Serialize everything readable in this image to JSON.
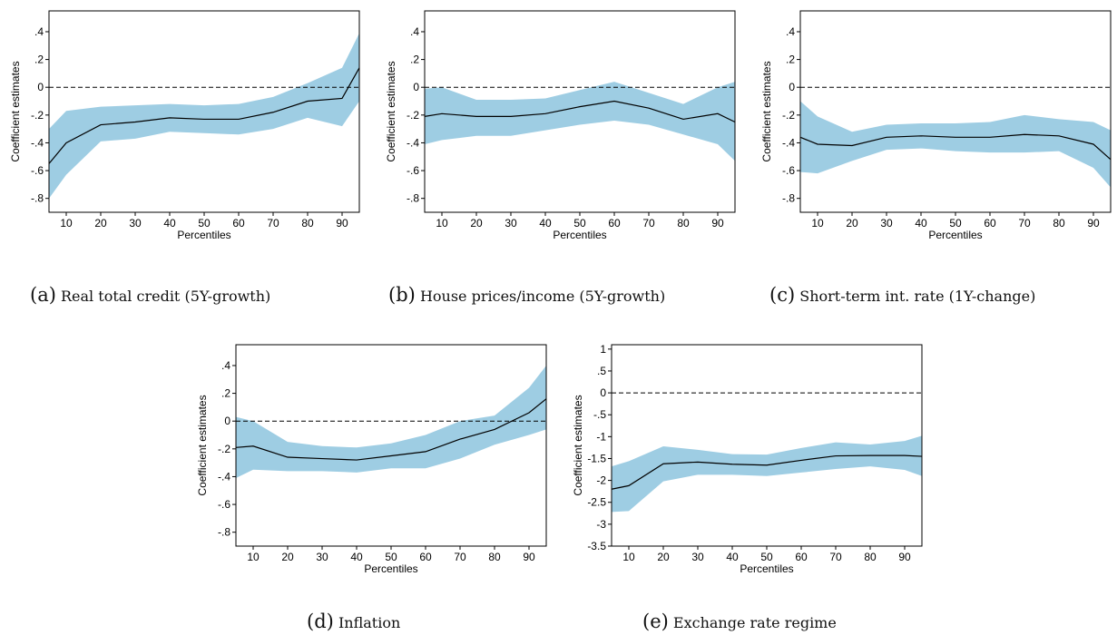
{
  "chart_data": [
    {
      "id": "a",
      "type": "line",
      "panel_label": "(a)",
      "caption": "Real total credit (5Y-growth)",
      "xlabel": "Percentiles",
      "ylabel": "Coefficient estimates",
      "x": [
        5,
        10,
        20,
        30,
        40,
        50,
        60,
        70,
        80,
        90,
        95
      ],
      "xticks": [
        10,
        20,
        30,
        40,
        50,
        60,
        70,
        80,
        90
      ],
      "xtick_labels": [
        "10",
        "20",
        "30",
        "40",
        "50",
        "60",
        "70",
        "80",
        "90"
      ],
      "xlim": [
        5,
        95
      ],
      "ylim": [
        -0.9,
        0.55
      ],
      "yticks": [
        0.4,
        0.2,
        0,
        -0.2,
        -0.4,
        -0.6,
        -0.8
      ],
      "ytick_labels": [
        ".4",
        ".2",
        "0",
        "-.2",
        "-.4",
        "-.6",
        "-.8"
      ],
      "estimate": [
        -0.55,
        -0.4,
        -0.27,
        -0.25,
        -0.22,
        -0.23,
        -0.23,
        -0.18,
        -0.1,
        -0.08,
        0.14
      ],
      "ci_upper": [
        -0.3,
        -0.17,
        -0.14,
        -0.13,
        -0.12,
        -0.13,
        -0.12,
        -0.07,
        0.03,
        0.14,
        0.39
      ],
      "ci_lower": [
        -0.8,
        -0.63,
        -0.39,
        -0.37,
        -0.32,
        -0.33,
        -0.34,
        -0.3,
        -0.22,
        -0.28,
        -0.1
      ],
      "reference_line": 0
    },
    {
      "id": "b",
      "type": "line",
      "panel_label": "(b)",
      "caption": "House prices/income (5Y-growth)",
      "xlabel": "Percentiles",
      "ylabel": "Coefficient estimates",
      "x": [
        5,
        10,
        20,
        30,
        40,
        50,
        60,
        70,
        80,
        90,
        95
      ],
      "xticks": [
        10,
        20,
        30,
        40,
        50,
        60,
        70,
        80,
        90
      ],
      "xtick_labels": [
        "10",
        "20",
        "30",
        "40",
        "50",
        "60",
        "70",
        "80",
        "90"
      ],
      "xlim": [
        5,
        95
      ],
      "ylim": [
        -0.9,
        0.55
      ],
      "yticks": [
        0.4,
        0.2,
        0,
        -0.2,
        -0.4,
        -0.6,
        -0.8
      ],
      "ytick_labels": [
        ".4",
        ".2",
        "0",
        "-.2",
        "-.4",
        "-.6",
        "-.8"
      ],
      "estimate": [
        -0.21,
        -0.19,
        -0.21,
        -0.21,
        -0.19,
        -0.14,
        -0.1,
        -0.15,
        -0.23,
        -0.19,
        -0.25
      ],
      "ci_upper": [
        -0.01,
        0.0,
        -0.09,
        -0.09,
        -0.08,
        -0.02,
        0.04,
        -0.04,
        -0.12,
        0.0,
        0.04
      ],
      "ci_lower": [
        -0.41,
        -0.38,
        -0.35,
        -0.35,
        -0.31,
        -0.27,
        -0.24,
        -0.27,
        -0.34,
        -0.41,
        -0.53
      ],
      "reference_line": 0
    },
    {
      "id": "c",
      "type": "line",
      "panel_label": "(c)",
      "caption": "Short-term int. rate (1Y-change)",
      "xlabel": "Percentiles",
      "ylabel": "Coefficient estimates",
      "x": [
        5,
        10,
        20,
        30,
        40,
        50,
        60,
        70,
        80,
        90,
        95
      ],
      "xticks": [
        10,
        20,
        30,
        40,
        50,
        60,
        70,
        80,
        90
      ],
      "xtick_labels": [
        "10",
        "20",
        "30",
        "40",
        "50",
        "60",
        "70",
        "80",
        "90"
      ],
      "xlim": [
        5,
        95
      ],
      "ylim": [
        -0.9,
        0.55
      ],
      "yticks": [
        0.4,
        0.2,
        0,
        -0.2,
        -0.4,
        -0.6,
        -0.8
      ],
      "ytick_labels": [
        ".4",
        ".2",
        "0",
        "-.2",
        "-.4",
        "-.6",
        "-.8"
      ],
      "estimate": [
        -0.36,
        -0.41,
        -0.42,
        -0.36,
        -0.35,
        -0.36,
        -0.36,
        -0.34,
        -0.35,
        -0.41,
        -0.52
      ],
      "ci_upper": [
        -0.1,
        -0.21,
        -0.32,
        -0.27,
        -0.26,
        -0.26,
        -0.25,
        -0.2,
        -0.23,
        -0.25,
        -0.31
      ],
      "ci_lower": [
        -0.61,
        -0.62,
        -0.53,
        -0.45,
        -0.44,
        -0.46,
        -0.47,
        -0.47,
        -0.46,
        -0.58,
        -0.72
      ],
      "reference_line": 0
    },
    {
      "id": "d",
      "type": "line",
      "panel_label": "(d)",
      "caption": "Inflation",
      "xlabel": "Percentiles",
      "ylabel": "Coefficient estimates",
      "x": [
        5,
        10,
        20,
        30,
        40,
        50,
        60,
        70,
        80,
        90,
        95
      ],
      "xticks": [
        10,
        20,
        30,
        40,
        50,
        60,
        70,
        80,
        90
      ],
      "xtick_labels": [
        "10",
        "20",
        "30",
        "40",
        "50",
        "60",
        "70",
        "80",
        "90"
      ],
      "xlim": [
        5,
        95
      ],
      "ylim": [
        -0.9,
        0.55
      ],
      "yticks": [
        0.4,
        0.2,
        0,
        -0.2,
        -0.4,
        -0.6,
        -0.8
      ],
      "ytick_labels": [
        ".4",
        ".2",
        "0",
        "-.2",
        "-.4",
        "-.6",
        "-.8"
      ],
      "estimate": [
        -0.19,
        -0.18,
        -0.26,
        -0.27,
        -0.28,
        -0.25,
        -0.22,
        -0.13,
        -0.06,
        0.06,
        0.16
      ],
      "ci_upper": [
        0.03,
        0.0,
        -0.15,
        -0.18,
        -0.19,
        -0.16,
        -0.1,
        0.0,
        0.04,
        0.24,
        0.4
      ],
      "ci_lower": [
        -0.41,
        -0.35,
        -0.36,
        -0.36,
        -0.37,
        -0.34,
        -0.34,
        -0.27,
        -0.17,
        -0.1,
        -0.06
      ],
      "reference_line": 0
    },
    {
      "id": "e",
      "type": "line",
      "panel_label": "(e)",
      "caption": "Exchange rate regime",
      "xlabel": "Percentiles",
      "ylabel": "Coefficient estimates",
      "x": [
        5,
        10,
        20,
        30,
        40,
        50,
        60,
        70,
        80,
        90,
        95
      ],
      "xticks": [
        10,
        20,
        30,
        40,
        50,
        60,
        70,
        80,
        90
      ],
      "xtick_labels": [
        "10",
        "20",
        "30",
        "40",
        "50",
        "60",
        "70",
        "80",
        "90"
      ],
      "xlim": [
        5,
        95
      ],
      "ylim": [
        -3.5,
        1.1
      ],
      "yticks": [
        1,
        0.5,
        0,
        -0.5,
        -1,
        -1.5,
        -2,
        -2.5,
        -3,
        -3.5
      ],
      "ytick_labels": [
        "1",
        ".5",
        "0",
        "-.5",
        "-1",
        "-1.5",
        "-2",
        "-2.5",
        "-3",
        "-3.5"
      ],
      "estimate": [
        -2.2,
        -2.12,
        -1.62,
        -1.58,
        -1.63,
        -1.65,
        -1.54,
        -1.44,
        -1.43,
        -1.43,
        -1.45
      ],
      "ci_upper": [
        -1.68,
        -1.56,
        -1.22,
        -1.3,
        -1.4,
        -1.41,
        -1.26,
        -1.13,
        -1.18,
        -1.1,
        -0.98
      ],
      "ci_lower": [
        -2.72,
        -2.7,
        -2.02,
        -1.87,
        -1.87,
        -1.9,
        -1.82,
        -1.74,
        -1.68,
        -1.76,
        -1.9
      ],
      "reference_line": 0
    }
  ],
  "colors": {
    "ci_band": "#9ecde3",
    "estimate_line": "#000000",
    "reference_line": "#000000"
  }
}
